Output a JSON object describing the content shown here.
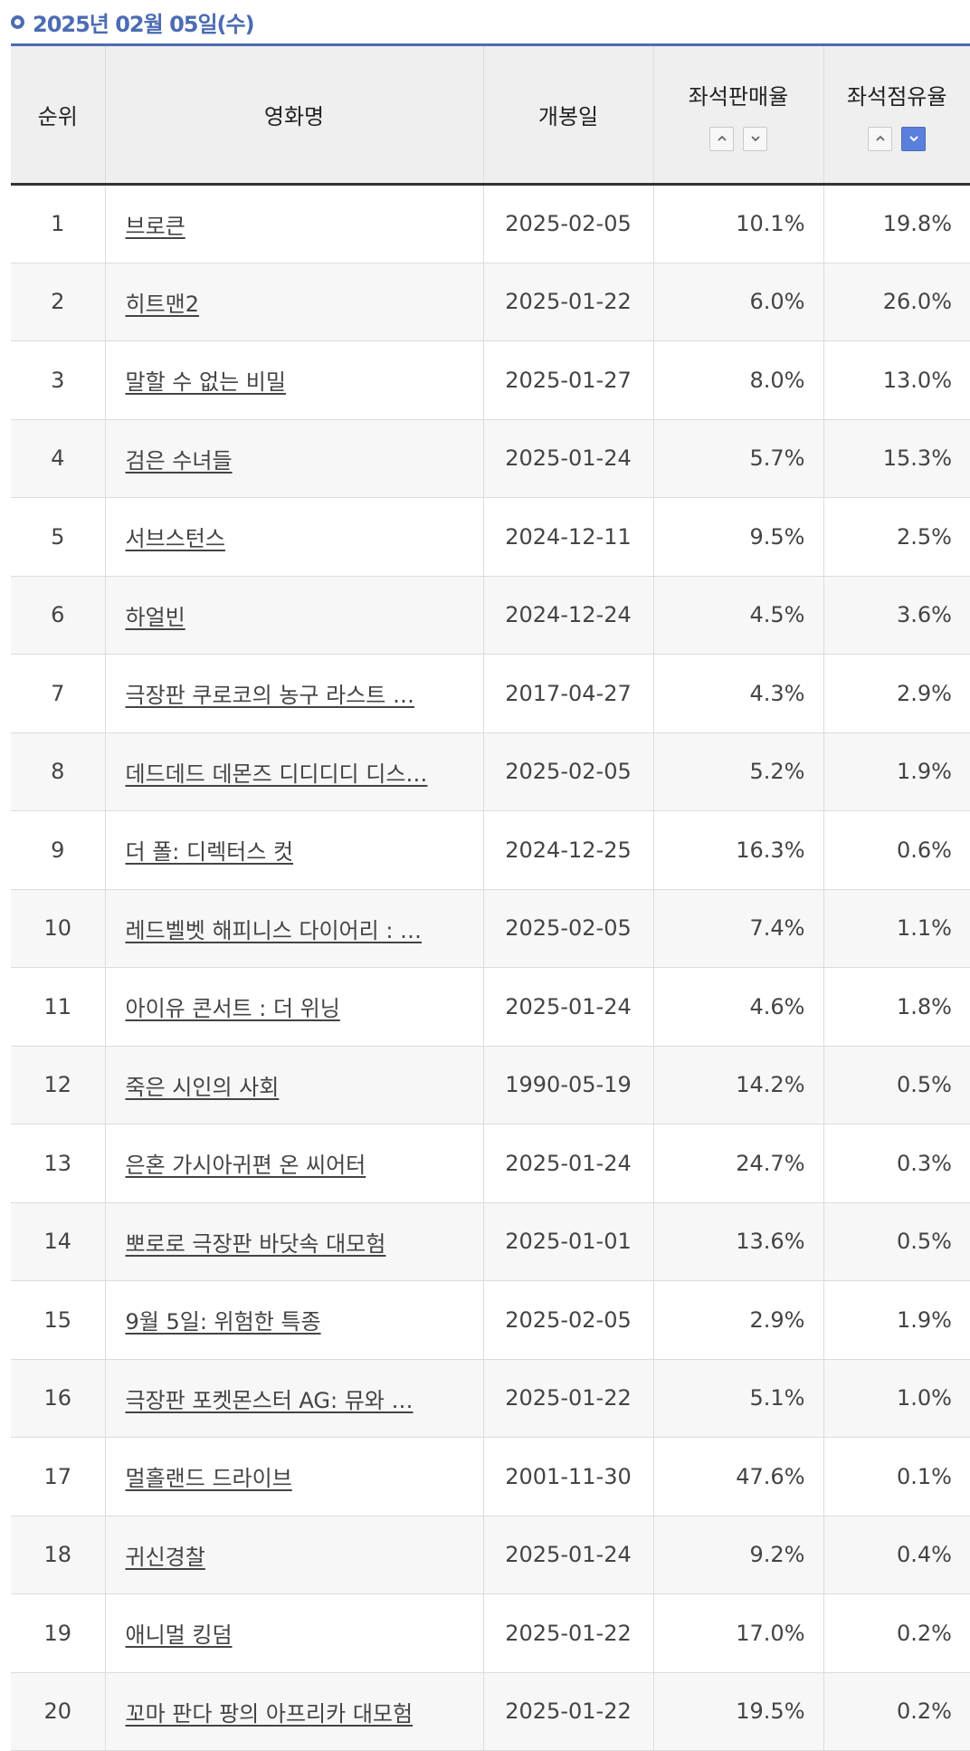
{
  "header": {
    "date_title": "2025년 02월 05일(수)"
  },
  "columns": {
    "rank": "순위",
    "title": "영화명",
    "release": "개봉일",
    "sales_rate": "좌석판매율",
    "occupancy_rate": "좌석점유율"
  },
  "sort": {
    "active_column": "occupancy_rate",
    "active_direction": "desc",
    "accent_color": "#5b7fdc"
  },
  "rows": [
    {
      "rank": "1",
      "title": "브로큰",
      "release": "2025-02-05",
      "sales_rate": "10.1%",
      "occupancy_rate": "19.8%"
    },
    {
      "rank": "2",
      "title": "히트맨2",
      "release": "2025-01-22",
      "sales_rate": "6.0%",
      "occupancy_rate": "26.0%"
    },
    {
      "rank": "3",
      "title": "말할 수 없는 비밀",
      "release": "2025-01-27",
      "sales_rate": "8.0%",
      "occupancy_rate": "13.0%"
    },
    {
      "rank": "4",
      "title": "검은 수녀들",
      "release": "2025-01-24",
      "sales_rate": "5.7%",
      "occupancy_rate": "15.3%"
    },
    {
      "rank": "5",
      "title": "서브스턴스",
      "release": "2024-12-11",
      "sales_rate": "9.5%",
      "occupancy_rate": "2.5%"
    },
    {
      "rank": "6",
      "title": "하얼빈",
      "release": "2024-12-24",
      "sales_rate": "4.5%",
      "occupancy_rate": "3.6%"
    },
    {
      "rank": "7",
      "title": "극장판 쿠로코의 농구 라스트 …",
      "release": "2017-04-27",
      "sales_rate": "4.3%",
      "occupancy_rate": "2.9%"
    },
    {
      "rank": "8",
      "title": "데드데드 데몬즈 디디디디 디스…",
      "release": "2025-02-05",
      "sales_rate": "5.2%",
      "occupancy_rate": "1.9%"
    },
    {
      "rank": "9",
      "title": "더 폴: 디렉터스 컷",
      "release": "2024-12-25",
      "sales_rate": "16.3%",
      "occupancy_rate": "0.6%"
    },
    {
      "rank": "10",
      "title": "레드벨벳 해피니스 다이어리 : …",
      "release": "2025-02-05",
      "sales_rate": "7.4%",
      "occupancy_rate": "1.1%"
    },
    {
      "rank": "11",
      "title": "아이유 콘서트 : 더 위닝",
      "release": "2025-01-24",
      "sales_rate": "4.6%",
      "occupancy_rate": "1.8%"
    },
    {
      "rank": "12",
      "title": "죽은 시인의 사회",
      "release": "1990-05-19",
      "sales_rate": "14.2%",
      "occupancy_rate": "0.5%"
    },
    {
      "rank": "13",
      "title": "은혼 가시아귀편 온 씨어터",
      "release": "2025-01-24",
      "sales_rate": "24.7%",
      "occupancy_rate": "0.3%"
    },
    {
      "rank": "14",
      "title": "뽀로로 극장판 바닷속 대모험",
      "release": "2025-01-01",
      "sales_rate": "13.6%",
      "occupancy_rate": "0.5%"
    },
    {
      "rank": "15",
      "title": "9월 5일: 위험한 특종",
      "release": "2025-02-05",
      "sales_rate": "2.9%",
      "occupancy_rate": "1.9%"
    },
    {
      "rank": "16",
      "title": "극장판 포켓몬스터 AG: 뮤와 …",
      "release": "2025-01-22",
      "sales_rate": "5.1%",
      "occupancy_rate": "1.0%"
    },
    {
      "rank": "17",
      "title": "멀홀랜드 드라이브",
      "release": "2001-11-30",
      "sales_rate": "47.6%",
      "occupancy_rate": "0.1%"
    },
    {
      "rank": "18",
      "title": "귀신경찰",
      "release": "2025-01-24",
      "sales_rate": "9.2%",
      "occupancy_rate": "0.4%"
    },
    {
      "rank": "19",
      "title": "애니멀 킹덤",
      "release": "2025-01-22",
      "sales_rate": "17.0%",
      "occupancy_rate": "0.2%"
    },
    {
      "rank": "20",
      "title": "꼬마 판다 팡의 아프리카 대모험",
      "release": "2025-01-22",
      "sales_rate": "19.5%",
      "occupancy_rate": "0.2%"
    }
  ]
}
